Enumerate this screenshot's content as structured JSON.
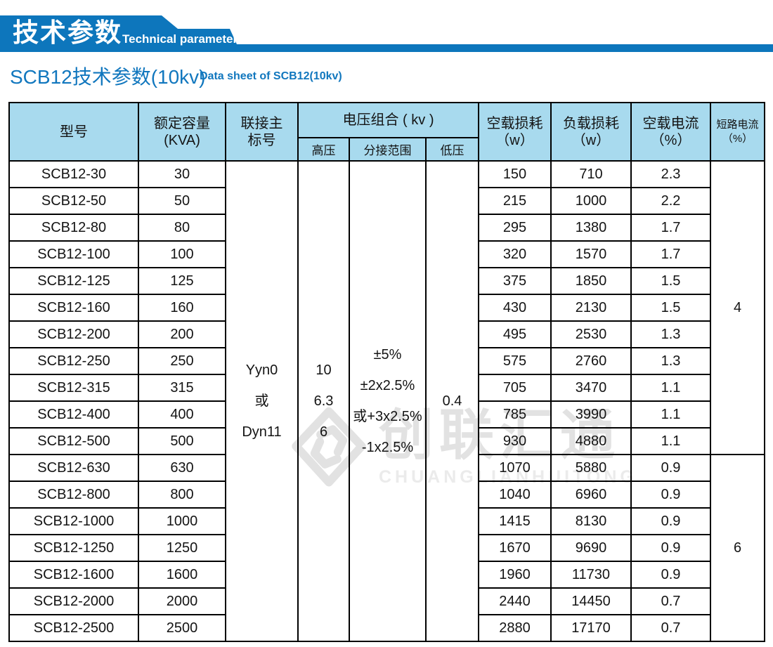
{
  "banner": {
    "title_zh": "技术参数",
    "title_en": "Technical parameter",
    "color": "#0d76bc"
  },
  "section": {
    "title_zh": "SCB12技术参数(10kv)",
    "title_en": "Data sheet of SCB12(10kv)",
    "color": "#1177be"
  },
  "watermark": {
    "zh": "创联汇通",
    "en": "CHUANGLIANHUITONG"
  },
  "table": {
    "header": {
      "model": "型号",
      "capacity_line1": "额定容量",
      "capacity_line2": "(KVA)",
      "connection_line1": "联接主",
      "connection_line2": "标号",
      "voltage_group": "电压组合 ( kv )",
      "hv": "高压",
      "tap": "分接范围",
      "lv": "低压",
      "noload_line1": "空载损耗",
      "noload_line2": "（w）",
      "load_line1": "负载损耗",
      "load_line2": "（w）",
      "current_line1": "空载电流",
      "current_line2": "（%）",
      "short_line1": "短路电流",
      "short_line2": "（%）"
    },
    "merged": {
      "connection_lines": [
        "Yyn0",
        "或",
        "Dyn11"
      ],
      "hv_lines": [
        "10",
        "6.3",
        "6"
      ],
      "tap_lines": [
        "±5%",
        "±2x2.5%",
        "或+3x2.5%",
        "-1x2.5%"
      ],
      "lv": "0.4"
    },
    "short_circuit_groups": [
      {
        "value": "4",
        "rows": 11
      },
      {
        "value": "6",
        "rows": 7
      }
    ],
    "rows": [
      {
        "model": "SCB12-30",
        "capacity": "30",
        "no_load_loss_w": "150",
        "load_loss_w": "710",
        "no_load_current_pct": "2.3"
      },
      {
        "model": "SCB12-50",
        "capacity": "50",
        "no_load_loss_w": "215",
        "load_loss_w": "1000",
        "no_load_current_pct": "2.2"
      },
      {
        "model": "SCB12-80",
        "capacity": "80",
        "no_load_loss_w": "295",
        "load_loss_w": "1380",
        "no_load_current_pct": "1.7"
      },
      {
        "model": "SCB12-100",
        "capacity": "100",
        "no_load_loss_w": "320",
        "load_loss_w": "1570",
        "no_load_current_pct": "1.7"
      },
      {
        "model": "SCB12-125",
        "capacity": "125",
        "no_load_loss_w": "375",
        "load_loss_w": "1850",
        "no_load_current_pct": "1.5"
      },
      {
        "model": "SCB12-160",
        "capacity": "160",
        "no_load_loss_w": "430",
        "load_loss_w": "2130",
        "no_load_current_pct": "1.5"
      },
      {
        "model": "SCB12-200",
        "capacity": "200",
        "no_load_loss_w": "495",
        "load_loss_w": "2530",
        "no_load_current_pct": "1.3"
      },
      {
        "model": "SCB12-250",
        "capacity": "250",
        "no_load_loss_w": "575",
        "load_loss_w": "2760",
        "no_load_current_pct": "1.3"
      },
      {
        "model": "SCB12-315",
        "capacity": "315",
        "no_load_loss_w": "705",
        "load_loss_w": "3470",
        "no_load_current_pct": "1.1"
      },
      {
        "model": "SCB12-400",
        "capacity": "400",
        "no_load_loss_w": "785",
        "load_loss_w": "3990",
        "no_load_current_pct": "1.1"
      },
      {
        "model": "SCB12-500",
        "capacity": "500",
        "no_load_loss_w": "930",
        "load_loss_w": "4880",
        "no_load_current_pct": "1.1"
      },
      {
        "model": "SCB12-630",
        "capacity": "630",
        "no_load_loss_w": "1070",
        "load_loss_w": "5880",
        "no_load_current_pct": "0.9"
      },
      {
        "model": "SCB12-800",
        "capacity": "800",
        "no_load_loss_w": "1040",
        "load_loss_w": "6960",
        "no_load_current_pct": "0.9"
      },
      {
        "model": "SCB12-1000",
        "capacity": "1000",
        "no_load_loss_w": "1415",
        "load_loss_w": "8130",
        "no_load_current_pct": "0.9"
      },
      {
        "model": "SCB12-1250",
        "capacity": "1250",
        "no_load_loss_w": "1670",
        "load_loss_w": "9690",
        "no_load_current_pct": "0.9"
      },
      {
        "model": "SCB12-1600",
        "capacity": "1600",
        "no_load_loss_w": "1960",
        "load_loss_w": "11730",
        "no_load_current_pct": "0.9"
      },
      {
        "model": "SCB12-2000",
        "capacity": "2000",
        "no_load_loss_w": "2440",
        "load_loss_w": "14450",
        "no_load_current_pct": "0.7"
      },
      {
        "model": "SCB12-2500",
        "capacity": "2500",
        "no_load_loss_w": "2880",
        "load_loss_w": "17170",
        "no_load_current_pct": "0.7"
      }
    ]
  }
}
